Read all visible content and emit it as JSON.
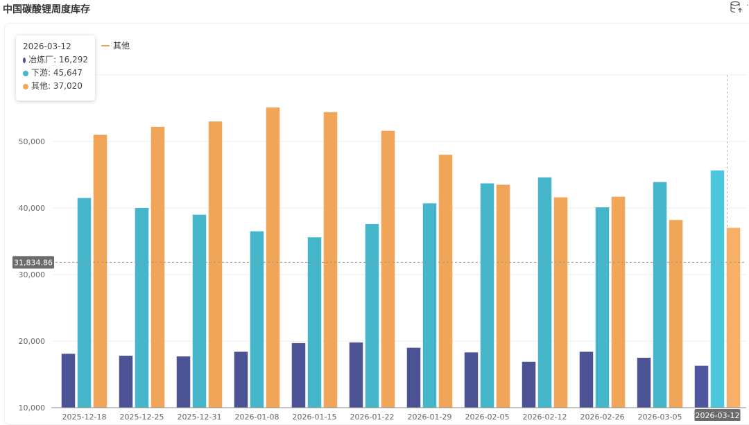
{
  "page": {
    "title": "中国碳酸锂周度库存"
  },
  "toolbar": {
    "icon": "database-export-icon",
    "more": "⋯"
  },
  "legend": [
    {
      "name": "其他",
      "color": "#F0A559"
    }
  ],
  "tooltip": {
    "date": "2026-03-12",
    "rows": [
      {
        "label": "冶炼厂: 16,292",
        "color": "#4B5395"
      },
      {
        "label": "下游: 45,647",
        "color": "#45B6CA"
      },
      {
        "label": "其他: 37,020",
        "color": "#F0A559"
      }
    ]
  },
  "crosshair": {
    "y_value": 31834.86,
    "y_label": "31,834.86",
    "x_category": "2026-03-12"
  },
  "chart_data": {
    "type": "bar",
    "categories": [
      "2025-12-18",
      "2025-12-25",
      "2025-12-31",
      "2026-01-08",
      "2026-01-15",
      "2026-01-22",
      "2026-01-29",
      "2026-02-05",
      "2026-02-12",
      "2026-02-26",
      "2026-03-05",
      "2026-03-12"
    ],
    "series": [
      {
        "name": "冶炼厂",
        "color": "#4B5395",
        "values": [
          18100,
          17800,
          17700,
          18400,
          19700,
          19800,
          19000,
          18300,
          16900,
          18400,
          17500,
          16292
        ]
      },
      {
        "name": "下游",
        "color": "#45B6CA",
        "values": [
          41500,
          40000,
          39000,
          36500,
          35600,
          37600,
          40700,
          43700,
          44600,
          40100,
          43900,
          45647
        ]
      },
      {
        "name": "其他",
        "color": "#F0A559",
        "values": [
          51000,
          52200,
          53000,
          55100,
          54400,
          51600,
          48000,
          43500,
          41600,
          41700,
          38200,
          37020
        ]
      }
    ],
    "yticks": [
      "10,000",
      "20,000",
      "30,000",
      "40,000",
      "50,000"
    ],
    "ylim": [
      10000,
      60000
    ],
    "grid": true,
    "legend_position": "top-left"
  }
}
